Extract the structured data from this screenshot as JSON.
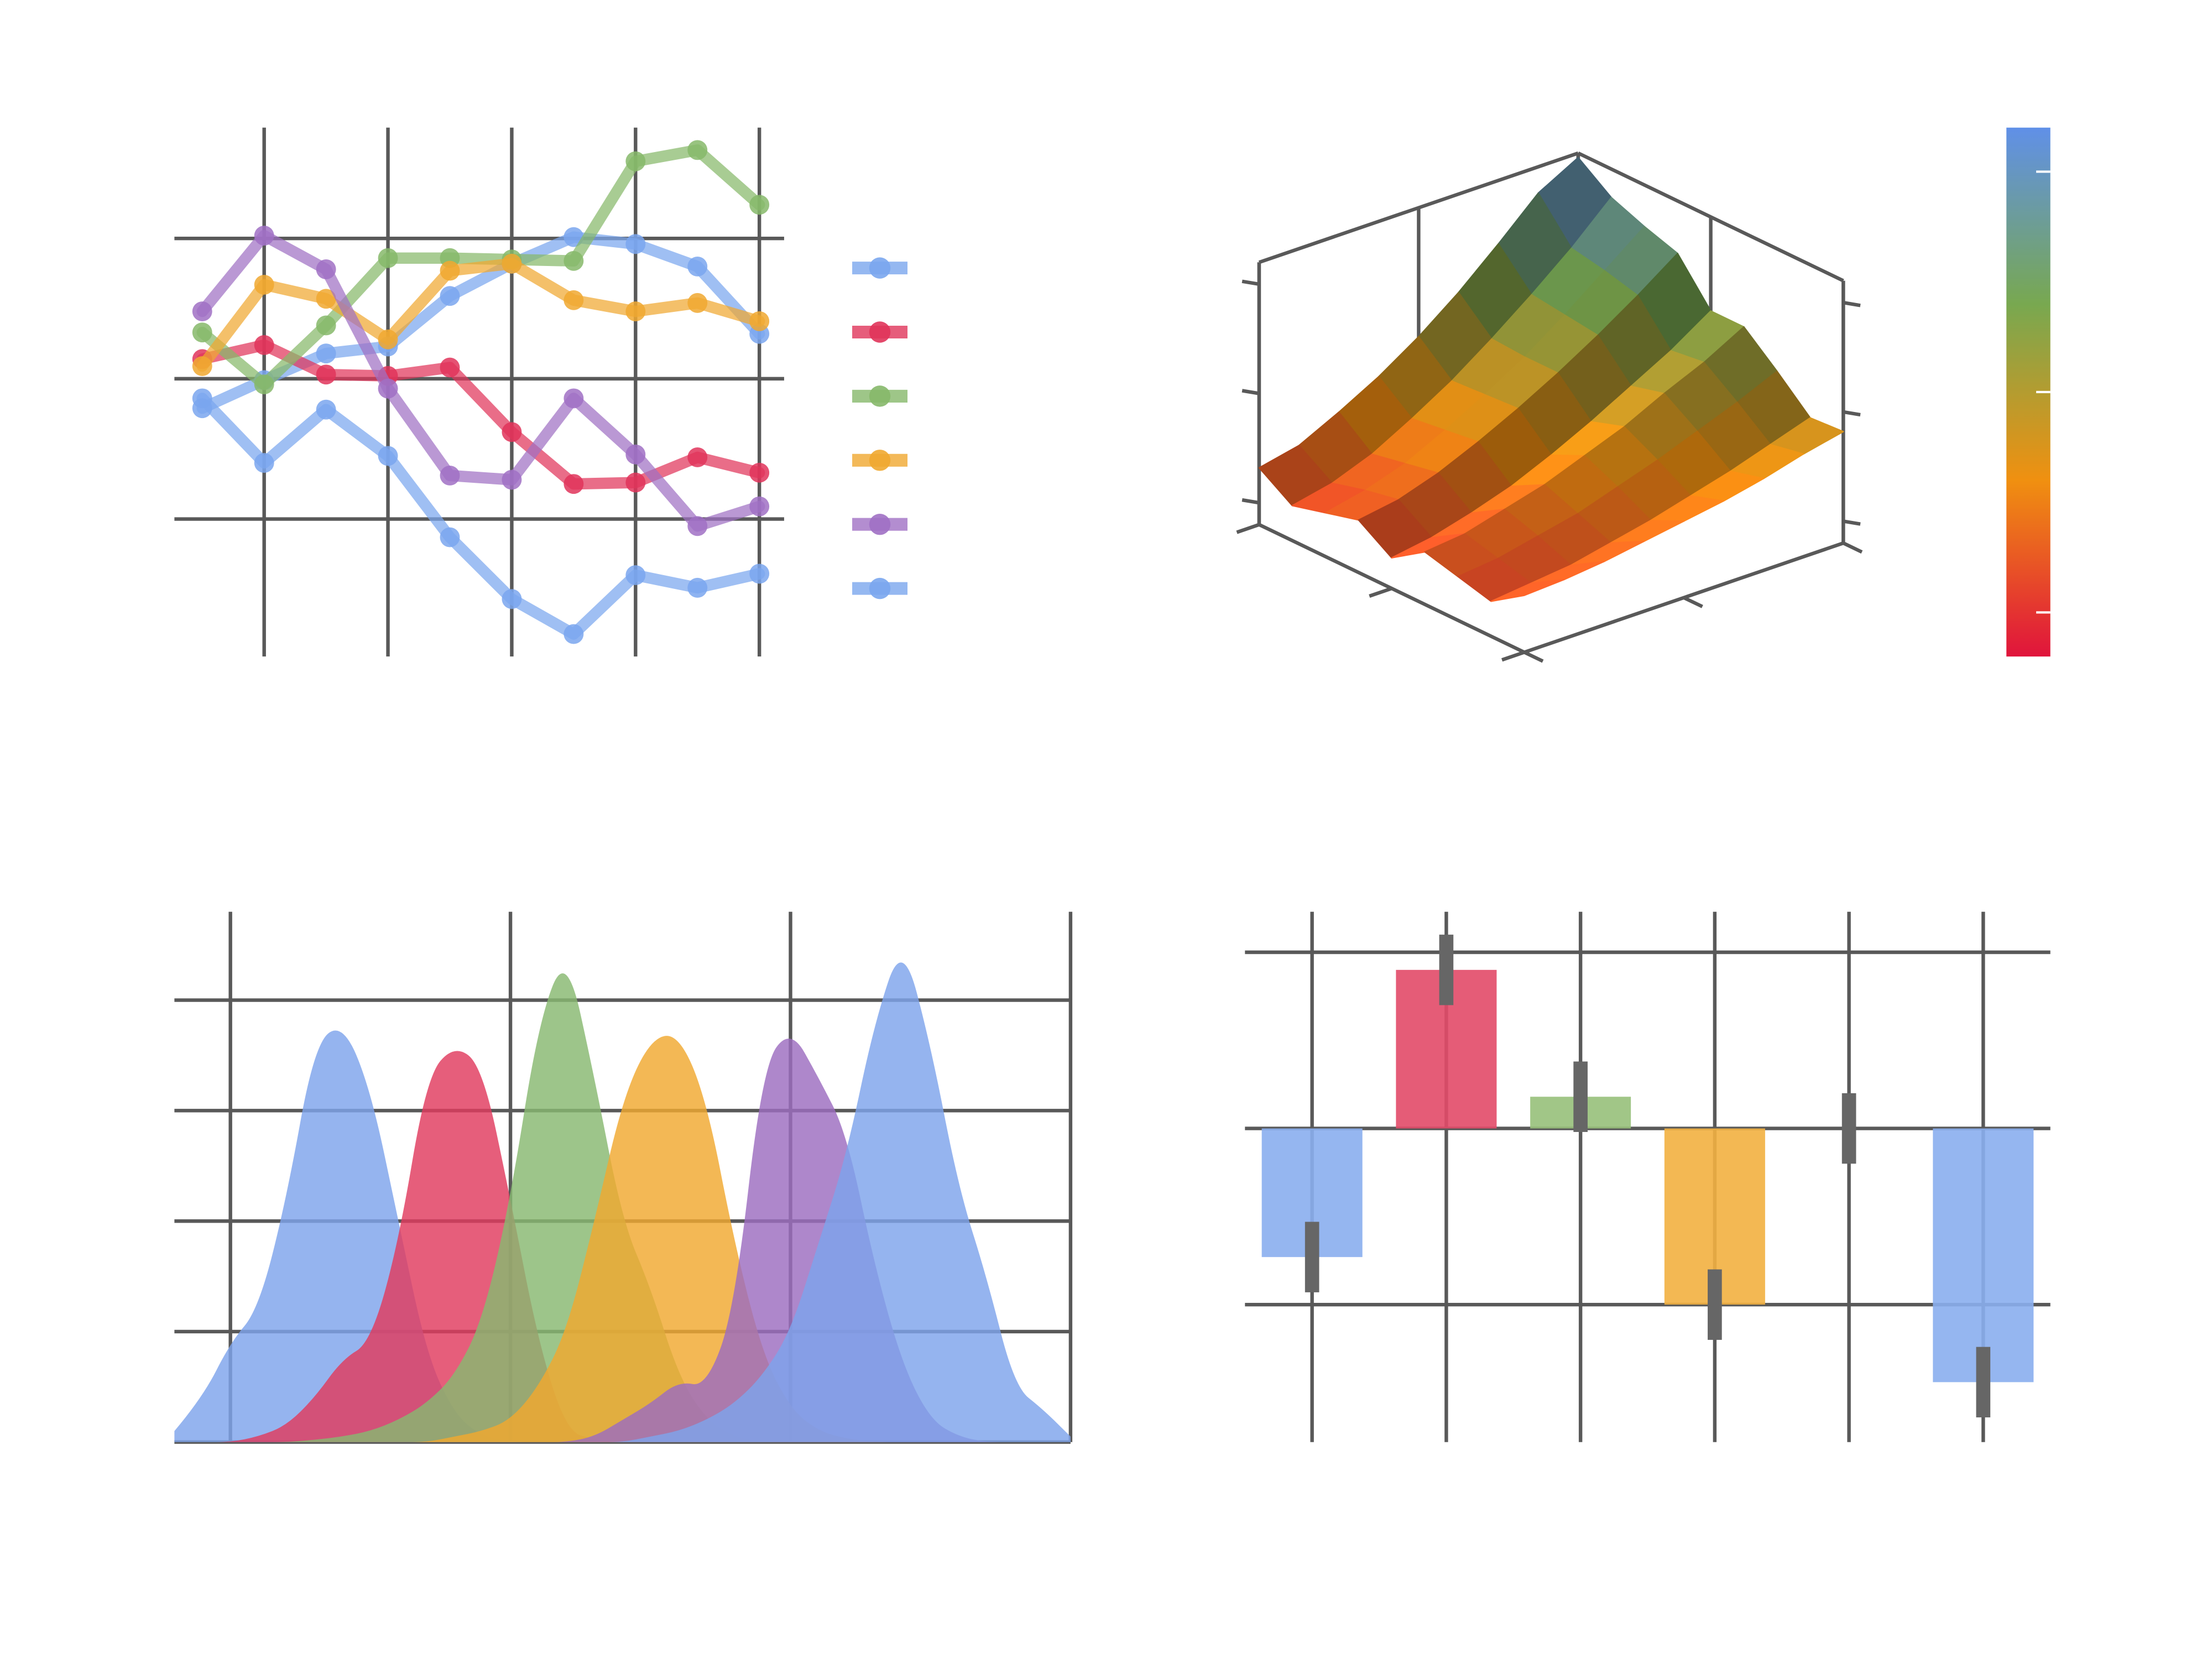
{
  "chart_data": [
    {
      "type": "line",
      "x": [
        0,
        1,
        2,
        3,
        4,
        5,
        6,
        7,
        8,
        9
      ],
      "xlim": [
        -0.45,
        9.4
      ],
      "xticks": [
        1,
        3,
        5,
        7,
        9
      ],
      "ylim": [
        -1.98,
        1.79
      ],
      "yticks": [
        -1,
        0,
        1
      ],
      "grid": true,
      "legend": "right",
      "series": [
        {
          "color": "#7aa6ee",
          "values": [
            -0.21,
            -0.01,
            0.18,
            0.23,
            0.59,
            0.82,
            1.01,
            0.96,
            0.8,
            0.32
          ]
        },
        {
          "color": "#e0345a",
          "values": [
            0.14,
            0.24,
            0.03,
            0.02,
            0.08,
            -0.38,
            -0.75,
            -0.74,
            -0.56,
            -0.67
          ]
        },
        {
          "color": "#86b86a",
          "values": [
            0.33,
            -0.04,
            0.38,
            0.86,
            0.86,
            0.85,
            0.84,
            1.55,
            1.63,
            1.24
          ]
        },
        {
          "color": "#f0a830",
          "values": [
            0.09,
            0.67,
            0.57,
            0.28,
            0.77,
            0.82,
            0.56,
            0.48,
            0.54,
            0.41
          ]
        },
        {
          "color": "#a070c4",
          "values": [
            0.48,
            1.02,
            0.78,
            -0.07,
            -0.69,
            -0.72,
            -0.14,
            -0.54,
            -1.05,
            -0.91
          ]
        },
        {
          "color": "#7aa6ee",
          "values": [
            -0.14,
            -0.6,
            -0.22,
            -0.55,
            -1.13,
            -1.57,
            -1.82,
            -1.4,
            -1.49,
            -1.39
          ]
        }
      ]
    },
    {
      "type": "surface",
      "x": [
        0,
        0.125,
        0.25,
        0.375,
        0.5,
        0.625,
        0.75,
        0.875,
        1
      ],
      "y": [
        0,
        0.125,
        0.25,
        0.375,
        0.5,
        0.625,
        0.75,
        0.875,
        1
      ],
      "z": [
        [
          0.16,
          0.06,
          0.1,
          0.14,
          0.04,
          0.14,
          0.1,
          0.06,
          0.16
        ],
        [
          0.2,
          0.1,
          0.14,
          0.17,
          0.07,
          0.16,
          0.12,
          0.08,
          0.17
        ],
        [
          0.29,
          0.17,
          0.2,
          0.23,
          0.12,
          0.21,
          0.16,
          0.1,
          0.19
        ],
        [
          0.39,
          0.27,
          0.29,
          0.31,
          0.18,
          0.26,
          0.2,
          0.14,
          0.22
        ],
        [
          0.51,
          0.38,
          0.39,
          0.4,
          0.26,
          0.33,
          0.26,
          0.18,
          0.25
        ],
        [
          0.65,
          0.51,
          0.5,
          0.5,
          0.35,
          0.4,
          0.32,
          0.23,
          0.28
        ],
        [
          0.81,
          0.65,
          0.63,
          0.61,
          0.45,
          0.49,
          0.39,
          0.28,
          0.32
        ],
        [
          0.98,
          0.8,
          0.77,
          0.73,
          0.55,
          0.57,
          0.46,
          0.34,
          0.37
        ],
        [
          1.08,
          0.97,
          0.91,
          0.86,
          0.67,
          0.67,
          0.54,
          0.4,
          0.41
        ]
      ],
      "xlim": [
        0,
        1
      ],
      "xticks": [
        0,
        0.5,
        1
      ],
      "ylim": [
        0,
        1
      ],
      "yticks": [
        0,
        0.5,
        1
      ],
      "zlim": [
        -0.1,
        1.1
      ],
      "zticks": [
        0,
        0.5,
        1
      ],
      "colormap": [
        "#e0143c",
        "#f09010",
        "#78a850",
        "#6090e8"
      ],
      "clim": [
        -0.1,
        1.1
      ],
      "cticks": [
        0,
        0.5,
        1
      ]
    },
    {
      "type": "density",
      "x": [
        -0.2,
        -0.1,
        0,
        0.1,
        0.2,
        0.3,
        0.4,
        0.5,
        0.6,
        0.7,
        0.8,
        0.9,
        1,
        1.1,
        1.2,
        1.3,
        1.4,
        1.5,
        1.6,
        1.7,
        1.8,
        1.9,
        2,
        2.1,
        2.2,
        2.3,
        2.4,
        2.5,
        2.6,
        2.7,
        2.8,
        2.9,
        3
      ],
      "xlim": [
        -0.2,
        3
      ],
      "xticks": [
        0,
        1,
        2,
        3
      ],
      "ylim": [
        0,
        4.8
      ],
      "yticks": [
        0,
        1,
        2,
        3,
        4
      ],
      "grid": true,
      "series": [
        {
          "color": "#7ea4ec",
          "values": [
            0.1,
            0.4,
            0.9,
            1.2,
            2.2,
            3.6,
            3.8,
            3.2,
            2.0,
            0.8,
            0.25,
            0.05,
            0,
            0,
            0,
            0,
            0,
            0,
            0,
            0,
            0,
            0,
            0,
            0,
            0,
            0,
            0,
            0,
            0,
            0,
            0,
            0,
            0
          ]
        },
        {
          "color": "#e03a5e",
          "values": [
            0,
            0,
            0,
            0.05,
            0.15,
            0.4,
            0.75,
            0.9,
            1.8,
            3.3,
            3.6,
            3.4,
            2.2,
            0.9,
            0.1,
            0.02,
            0,
            0,
            0,
            0,
            0,
            0,
            0,
            0,
            0,
            0,
            0,
            0,
            0,
            0,
            0,
            0,
            0
          ]
        },
        {
          "color": "#88b870",
          "values": [
            0,
            0,
            0,
            0,
            0,
            0.02,
            0.05,
            0.1,
            0.2,
            0.35,
            0.6,
            1.1,
            2.2,
            3.8,
            4.45,
            3.3,
            2.0,
            1.4,
            0.6,
            0.2,
            0.05,
            0,
            0,
            0,
            0,
            0,
            0,
            0,
            0,
            0,
            0,
            0,
            0
          ]
        },
        {
          "color": "#f0a830",
          "values": [
            0,
            0,
            0,
            0,
            0,
            0,
            0,
            0,
            0,
            0,
            0.05,
            0.1,
            0.2,
            0.5,
            1.0,
            2.0,
            3.1,
            3.65,
            3.7,
            3.1,
            1.8,
            0.8,
            0.3,
            0.1,
            0.03,
            0,
            0,
            0,
            0,
            0,
            0,
            0,
            0
          ]
        },
        {
          "color": "#9c6cc0",
          "values": [
            0,
            0,
            0,
            0,
            0,
            0,
            0,
            0,
            0,
            0,
            0,
            0,
            0,
            0,
            0,
            0.05,
            0.2,
            0.35,
            0.55,
            0.5,
            1.2,
            3.4,
            3.75,
            3.3,
            2.8,
            1.6,
            0.7,
            0.2,
            0.05,
            0,
            0,
            0,
            0
          ]
        },
        {
          "color": "#7ea4ec",
          "values": [
            0,
            0,
            0,
            0,
            0,
            0,
            0,
            0,
            0,
            0,
            0,
            0,
            0,
            0,
            0,
            0,
            0,
            0.05,
            0.1,
            0.2,
            0.35,
            0.6,
            1.0,
            1.8,
            2.6,
            3.8,
            4.55,
            3.6,
            2.3,
            1.5,
            0.5,
            0.3,
            0.05
          ]
        }
      ]
    },
    {
      "type": "bar",
      "categories": [
        null,
        null,
        null,
        null,
        null,
        null
      ],
      "values": [
        -0.73,
        0.9,
        0.18,
        -1.0,
        0,
        -1.44
      ],
      "errors": [
        0.2,
        0.2,
        0.2,
        0.2,
        0.2,
        0.2
      ],
      "colors": [
        "#8aaeee",
        "#e24a68",
        "#97c07a",
        "#f2b040",
        "#a878cc",
        "#8aaeee"
      ],
      "ylim": [
        -1.78,
        1.23
      ],
      "yticks": [
        -1,
        0,
        1
      ],
      "grid": true
    }
  ]
}
